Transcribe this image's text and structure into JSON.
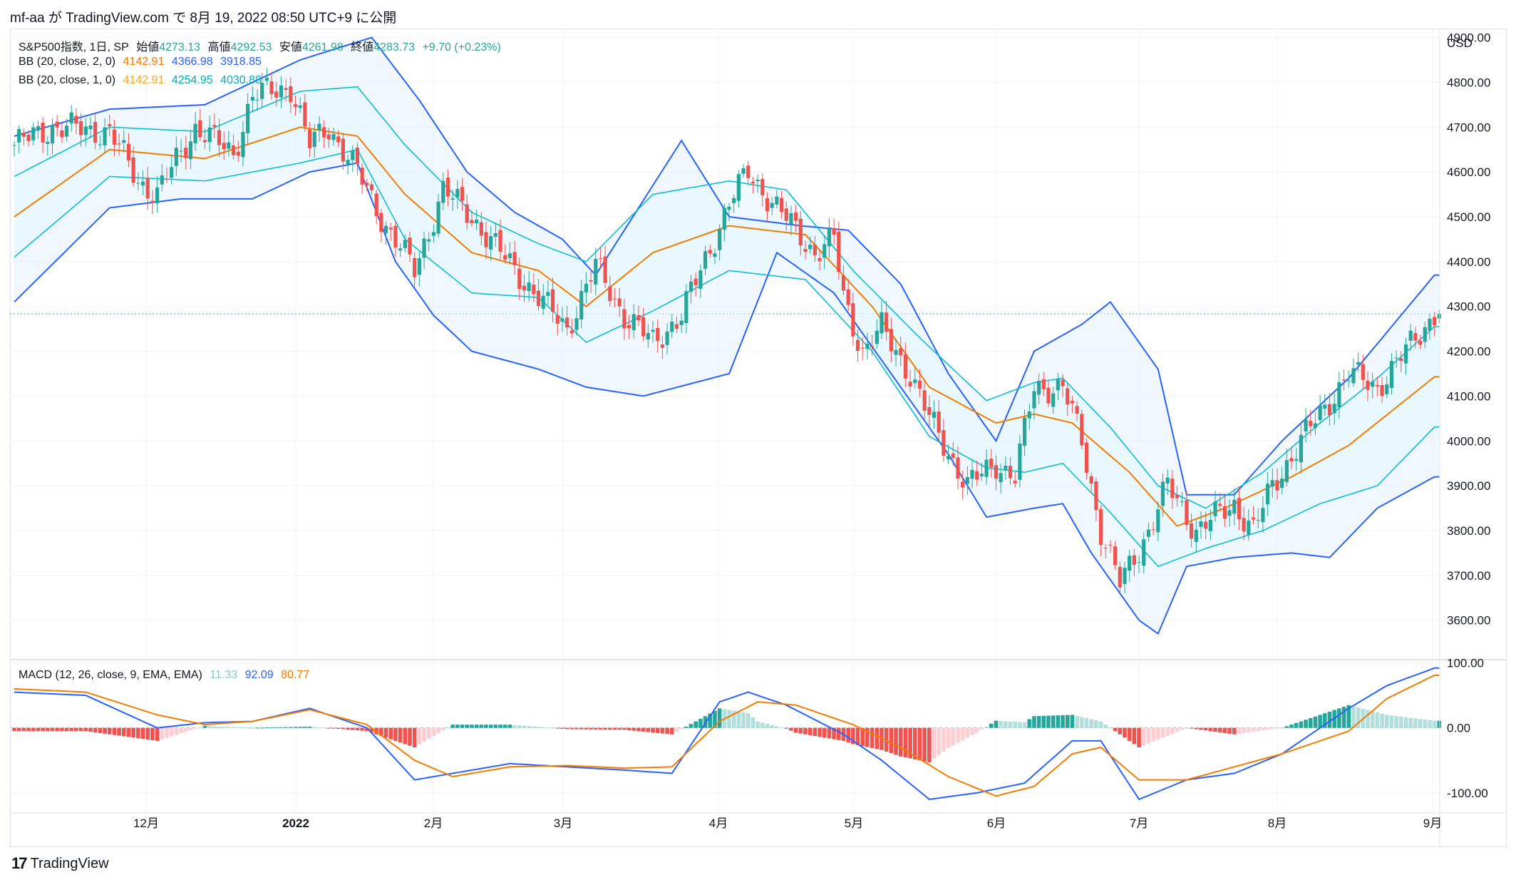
{
  "header": {
    "publisher_line": "mf-aa が TradingView.com で 8月 19, 2022 08:50 UTC+9 に公開"
  },
  "legend": {
    "symbol": "S&P500指数, 1日, SP",
    "open_label": "始値",
    "open": "4273.13",
    "high_label": "高値",
    "high": "4292.53",
    "low_label": "安値",
    "low": "4261.98",
    "close_label": "終値",
    "close": "4283.73",
    "change": "+9.70 (+0.23%)",
    "bb2_label": "BB (20, close, 2, 0)",
    "bb2_mid": "4142.91",
    "bb2_upper": "4366.98",
    "bb2_lower": "3918.85",
    "bb1_label": "BB (20, close, 1, 0)",
    "bb1_mid": "4142.91",
    "bb1_upper": "4254.95",
    "bb1_lower": "4030.88",
    "macd_label": "MACD (12, 26, close, 9, EMA, EMA)",
    "macd_hist": "11.33",
    "macd_line": "92.09",
    "macd_signal": "80.77"
  },
  "footer": {
    "brand": "TradingView"
  },
  "colors": {
    "up": "#26a69a",
    "down": "#ef5350",
    "bb2": "#2962ff",
    "bb1": "#00bcd4",
    "basis": "#f57c00",
    "fill": "#e3f2fd",
    "grid": "#f0f3fa",
    "hist_up_strong": "#26a69a",
    "hist_up_weak": "#b2dfdb",
    "hist_down_strong": "#ef5350",
    "hist_down_weak": "#ffcdd2"
  },
  "chart_data": {
    "type": "candlestick",
    "title": "S&P500指数, 1日, SP",
    "currency": "USD",
    "ylim": [
      3520,
      4920
    ],
    "y_ticks": [
      "4900.00",
      "4800.00",
      "4700.00",
      "4600.00",
      "4500.00",
      "4400.00",
      "4300.00",
      "4200.00",
      "4100.00",
      "4000.00",
      "3900.00",
      "3800.00",
      "3700.00",
      "3600.00"
    ],
    "x_ticks": [
      "12月",
      "2022",
      "2月",
      "3月",
      "4月",
      "5月",
      "6月",
      "7月",
      "8月",
      "9月"
    ],
    "last_price": 4283.73,
    "price_keypoints": [
      [
        0,
        4660
      ],
      [
        8,
        4700
      ],
      [
        20,
        4690
      ],
      [
        26,
        4580
      ],
      [
        30,
        4550
      ],
      [
        38,
        4700
      ],
      [
        46,
        4640
      ],
      [
        50,
        4770
      ],
      [
        58,
        4790
      ],
      [
        62,
        4660
      ],
      [
        66,
        4700
      ],
      [
        72,
        4600
      ],
      [
        78,
        4480
      ],
      [
        84,
        4380
      ],
      [
        90,
        4560
      ],
      [
        96,
        4500
      ],
      [
        102,
        4420
      ],
      [
        110,
        4320
      ],
      [
        116,
        4250
      ],
      [
        122,
        4390
      ],
      [
        128,
        4280
      ],
      [
        134,
        4220
      ],
      [
        140,
        4280
      ],
      [
        150,
        4530
      ],
      [
        154,
        4600
      ],
      [
        160,
        4520
      ],
      [
        168,
        4420
      ],
      [
        172,
        4450
      ],
      [
        174,
        4320
      ],
      [
        178,
        4200
      ],
      [
        182,
        4250
      ],
      [
        188,
        4150
      ],
      [
        192,
        4050
      ],
      [
        200,
        3900
      ],
      [
        206,
        3950
      ],
      [
        210,
        3920
      ],
      [
        214,
        4120
      ],
      [
        220,
        4120
      ],
      [
        224,
        4000
      ],
      [
        228,
        3800
      ],
      [
        232,
        3680
      ],
      [
        238,
        3800
      ],
      [
        242,
        3900
      ],
      [
        248,
        3800
      ],
      [
        256,
        3860
      ],
      [
        260,
        3800
      ],
      [
        264,
        3900
      ],
      [
        270,
        4000
      ],
      [
        280,
        4150
      ],
      [
        286,
        4120
      ],
      [
        292,
        4200
      ],
      [
        298,
        4284
      ]
    ],
    "bb2_upper_keypoints": [
      [
        0,
        4680
      ],
      [
        20,
        4740
      ],
      [
        40,
        4750
      ],
      [
        60,
        4850
      ],
      [
        75,
        4900
      ],
      [
        85,
        4760
      ],
      [
        95,
        4600
      ],
      [
        105,
        4510
      ],
      [
        115,
        4450
      ],
      [
        122,
        4370
      ],
      [
        140,
        4670
      ],
      [
        150,
        4500
      ],
      [
        165,
        4480
      ],
      [
        175,
        4470
      ],
      [
        186,
        4350
      ],
      [
        196,
        4150
      ],
      [
        206,
        4000
      ],
      [
        214,
        4200
      ],
      [
        224,
        4260
      ],
      [
        230,
        4310
      ],
      [
        240,
        4160
      ],
      [
        246,
        3880
      ],
      [
        256,
        3880
      ],
      [
        266,
        4000
      ],
      [
        280,
        4140
      ],
      [
        298,
        4370
      ]
    ],
    "bb2_lower_keypoints": [
      [
        0,
        4310
      ],
      [
        20,
        4520
      ],
      [
        35,
        4540
      ],
      [
        50,
        4540
      ],
      [
        62,
        4600
      ],
      [
        72,
        4620
      ],
      [
        80,
        4400
      ],
      [
        88,
        4280
      ],
      [
        96,
        4200
      ],
      [
        110,
        4160
      ],
      [
        120,
        4120
      ],
      [
        132,
        4100
      ],
      [
        150,
        4150
      ],
      [
        160,
        4420
      ],
      [
        172,
        4330
      ],
      [
        186,
        4120
      ],
      [
        196,
        3970
      ],
      [
        204,
        3830
      ],
      [
        214,
        3850
      ],
      [
        220,
        3860
      ],
      [
        226,
        3750
      ],
      [
        236,
        3600
      ],
      [
        240,
        3570
      ],
      [
        246,
        3720
      ],
      [
        256,
        3740
      ],
      [
        268,
        3750
      ],
      [
        276,
        3740
      ],
      [
        286,
        3850
      ],
      [
        298,
        3920
      ]
    ],
    "basis_keypoints": [
      [
        0,
        4500
      ],
      [
        20,
        4650
      ],
      [
        40,
        4630
      ],
      [
        60,
        4700
      ],
      [
        72,
        4680
      ],
      [
        82,
        4550
      ],
      [
        96,
        4420
      ],
      [
        110,
        4380
      ],
      [
        120,
        4300
      ],
      [
        134,
        4420
      ],
      [
        150,
        4480
      ],
      [
        166,
        4460
      ],
      [
        180,
        4300
      ],
      [
        192,
        4120
      ],
      [
        206,
        4040
      ],
      [
        214,
        4060
      ],
      [
        222,
        4040
      ],
      [
        234,
        3930
      ],
      [
        244,
        3810
      ],
      [
        254,
        3850
      ],
      [
        268,
        3920
      ],
      [
        280,
        3990
      ],
      [
        298,
        4143
      ]
    ],
    "bb1_upper_keypoints": [
      [
        0,
        4590
      ],
      [
        20,
        4700
      ],
      [
        40,
        4690
      ],
      [
        60,
        4780
      ],
      [
        72,
        4790
      ],
      [
        82,
        4660
      ],
      [
        96,
        4510
      ],
      [
        110,
        4440
      ],
      [
        120,
        4400
      ],
      [
        134,
        4550
      ],
      [
        150,
        4580
      ],
      [
        162,
        4560
      ],
      [
        176,
        4380
      ],
      [
        190,
        4230
      ],
      [
        204,
        4090
      ],
      [
        214,
        4130
      ],
      [
        220,
        4140
      ],
      [
        230,
        4030
      ],
      [
        240,
        3900
      ],
      [
        250,
        3850
      ],
      [
        262,
        3930
      ],
      [
        274,
        4040
      ],
      [
        286,
        4140
      ],
      [
        298,
        4255
      ]
    ],
    "bb1_lower_keypoints": [
      [
        0,
        4410
      ],
      [
        20,
        4590
      ],
      [
        40,
        4580
      ],
      [
        60,
        4620
      ],
      [
        72,
        4650
      ],
      [
        82,
        4450
      ],
      [
        96,
        4330
      ],
      [
        110,
        4320
      ],
      [
        120,
        4220
      ],
      [
        134,
        4290
      ],
      [
        150,
        4380
      ],
      [
        166,
        4360
      ],
      [
        180,
        4200
      ],
      [
        192,
        4010
      ],
      [
        204,
        3940
      ],
      [
        212,
        3930
      ],
      [
        220,
        3950
      ],
      [
        230,
        3840
      ],
      [
        240,
        3720
      ],
      [
        250,
        3760
      ],
      [
        262,
        3800
      ],
      [
        274,
        3860
      ],
      [
        286,
        3900
      ],
      [
        298,
        4031
      ]
    ],
    "macd_ylim": [
      -120,
      105
    ],
    "macd_ticks": [
      "100.00",
      "0.00",
      "-100.00"
    ],
    "macd_line_keypoints": [
      [
        0,
        55
      ],
      [
        15,
        50
      ],
      [
        30,
        0
      ],
      [
        40,
        8
      ],
      [
        50,
        10
      ],
      [
        62,
        30
      ],
      [
        74,
        0
      ],
      [
        84,
        -80
      ],
      [
        92,
        -70
      ],
      [
        104,
        -55
      ],
      [
        116,
        -60
      ],
      [
        128,
        -65
      ],
      [
        138,
        -70
      ],
      [
        148,
        40
      ],
      [
        154,
        55
      ],
      [
        162,
        35
      ],
      [
        174,
        -10
      ],
      [
        182,
        -50
      ],
      [
        192,
        -110
      ],
      [
        202,
        -100
      ],
      [
        212,
        -85
      ],
      [
        222,
        -20
      ],
      [
        228,
        -20
      ],
      [
        236,
        -110
      ],
      [
        246,
        -80
      ],
      [
        256,
        -70
      ],
      [
        266,
        -40
      ],
      [
        280,
        30
      ],
      [
        288,
        65
      ],
      [
        298,
        92
      ]
    ],
    "macd_signal_keypoints": [
      [
        0,
        60
      ],
      [
        15,
        55
      ],
      [
        30,
        20
      ],
      [
        40,
        5
      ],
      [
        50,
        10
      ],
      [
        62,
        28
      ],
      [
        74,
        5
      ],
      [
        84,
        -50
      ],
      [
        92,
        -75
      ],
      [
        104,
        -60
      ],
      [
        116,
        -58
      ],
      [
        128,
        -62
      ],
      [
        138,
        -60
      ],
      [
        148,
        10
      ],
      [
        156,
        40
      ],
      [
        164,
        35
      ],
      [
        176,
        5
      ],
      [
        186,
        -30
      ],
      [
        196,
        -75
      ],
      [
        206,
        -105
      ],
      [
        214,
        -90
      ],
      [
        222,
        -40
      ],
      [
        228,
        -30
      ],
      [
        236,
        -80
      ],
      [
        246,
        -80
      ],
      [
        256,
        -60
      ],
      [
        266,
        -40
      ],
      [
        280,
        -5
      ],
      [
        288,
        45
      ],
      [
        298,
        81
      ]
    ]
  }
}
